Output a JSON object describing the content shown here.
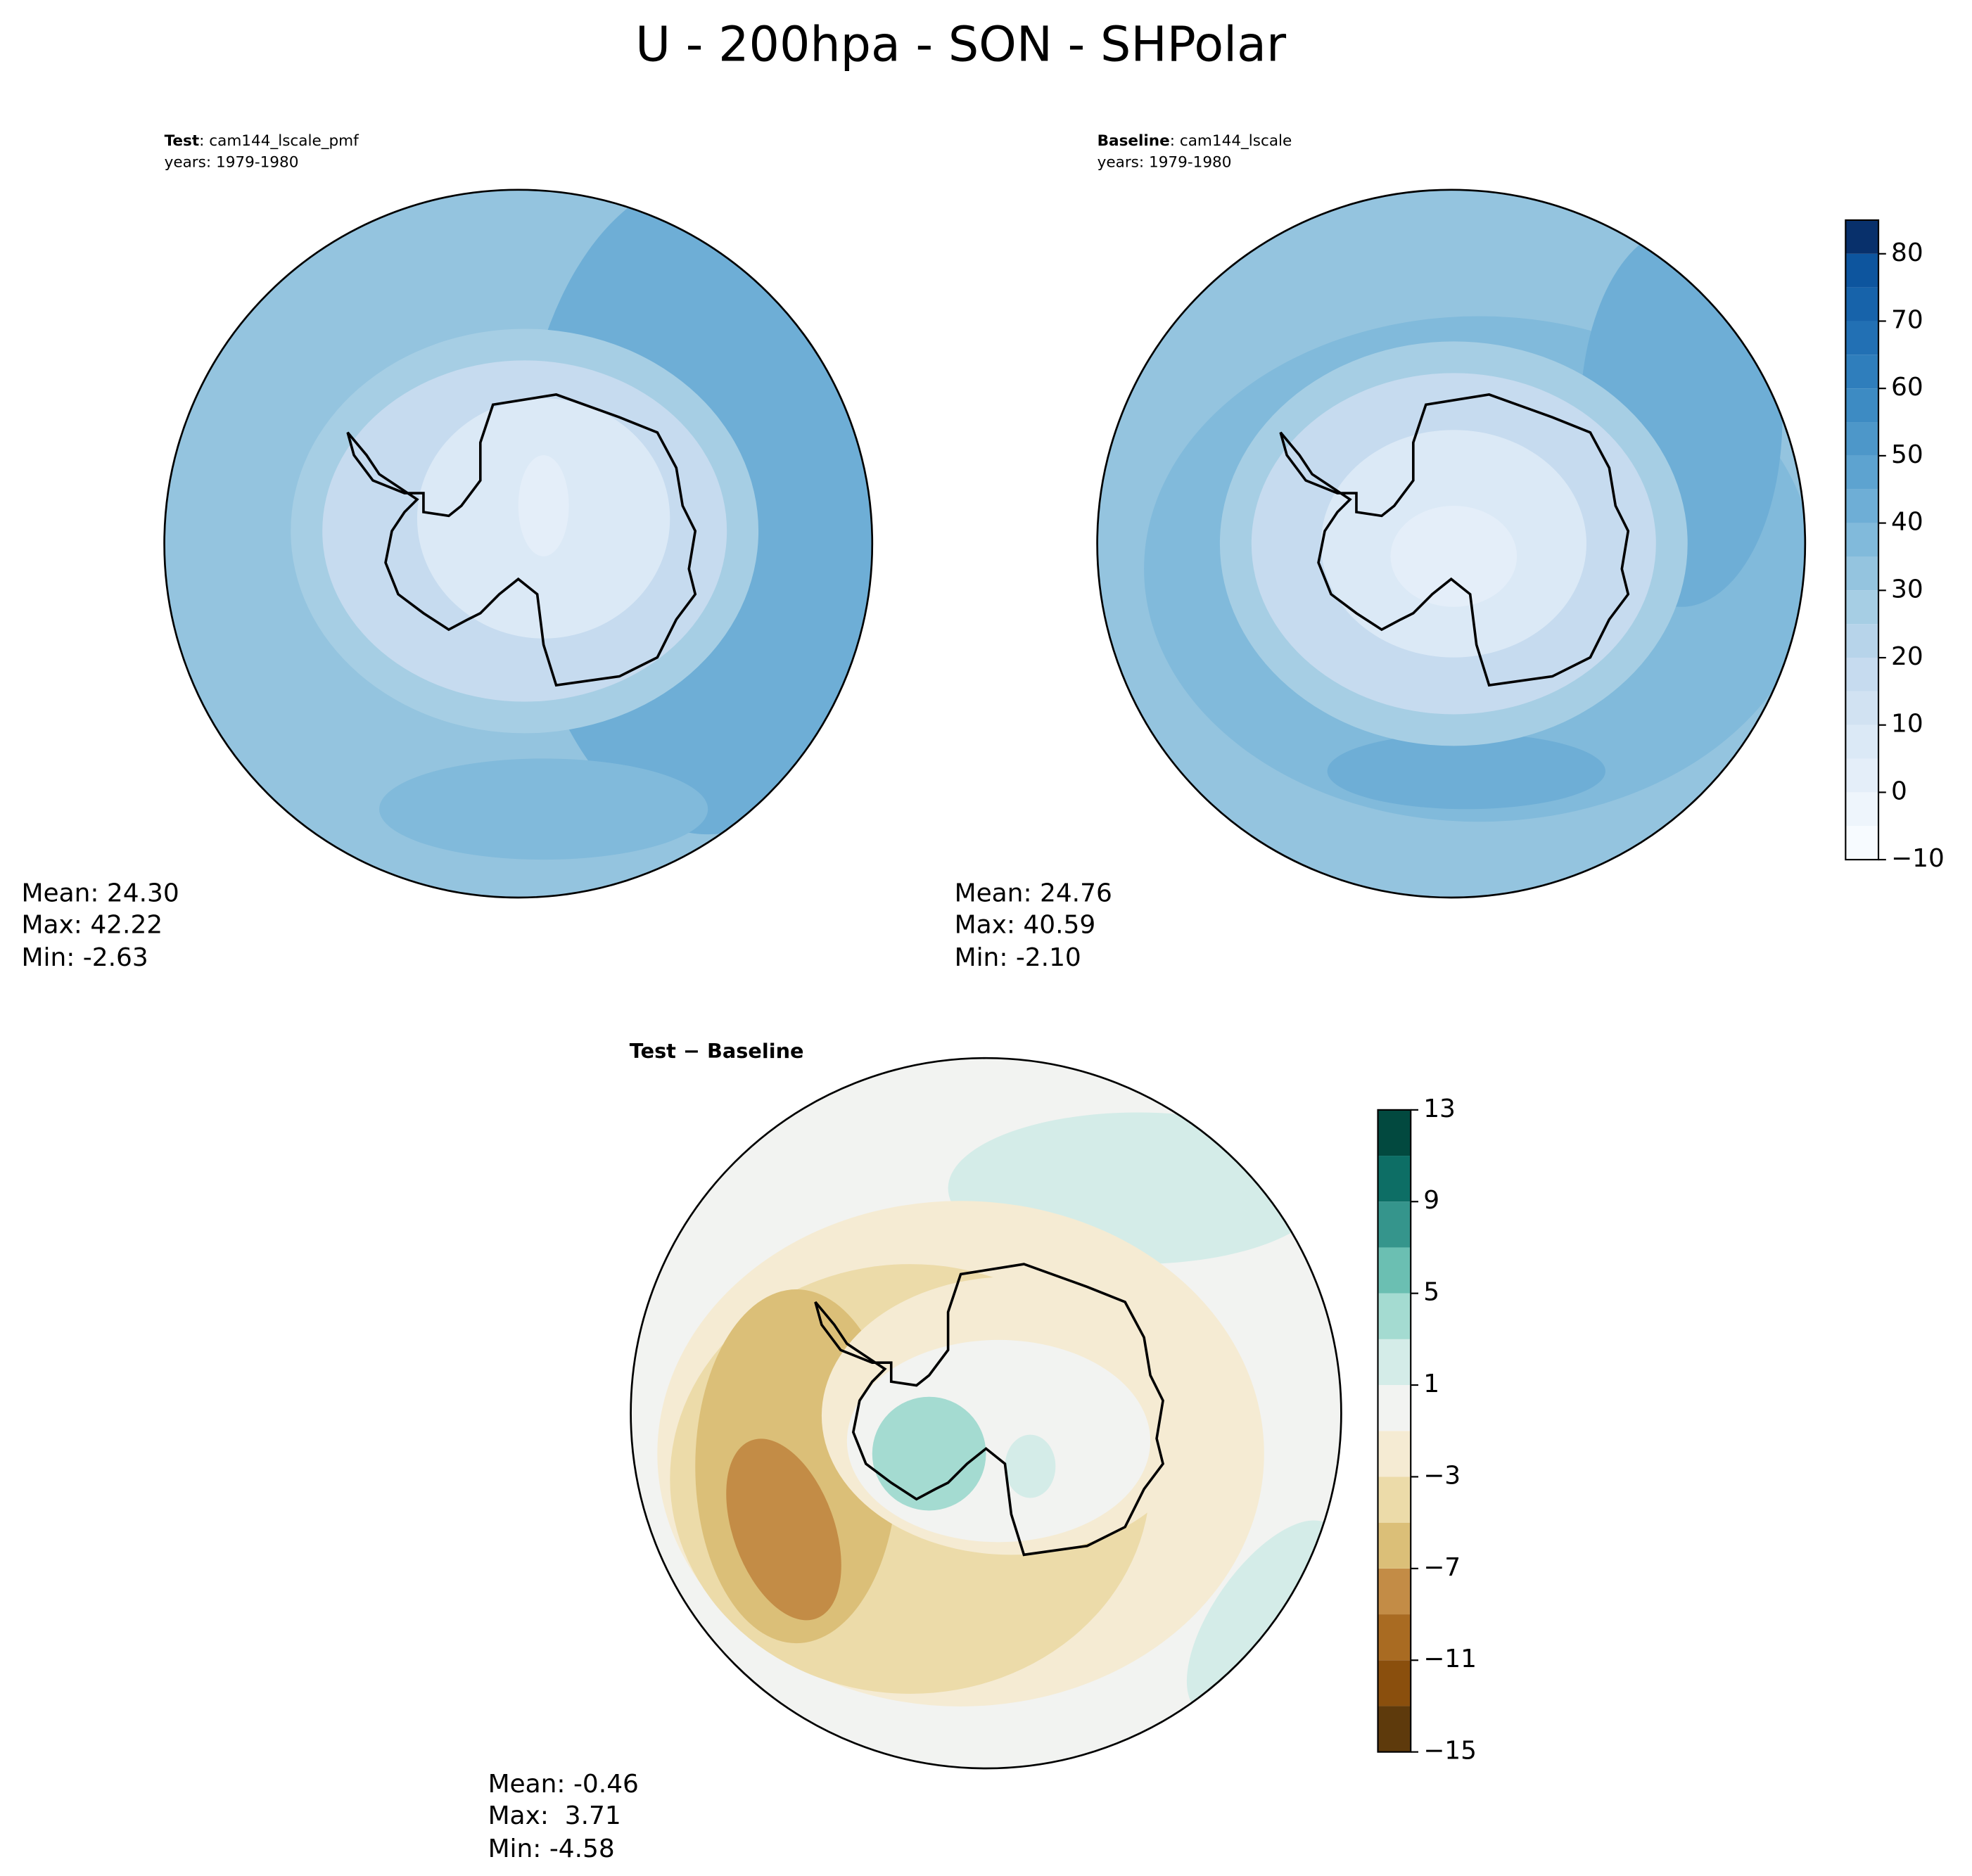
{
  "title": "U - 200hpa - SON - SHPolar",
  "panels": [
    {
      "name_bold": "Test",
      "name_text": ": cam144_lscale_pmf",
      "years": "years: 1979-1980",
      "stats": [
        "Mean: 24.30",
        "Max: 42.22",
        "Min: -2.63"
      ]
    },
    {
      "name_bold": "Baseline",
      "name_text": ": cam144_lscale",
      "years": "years: 1979-1980",
      "stats": [
        "Mean: 24.76",
        "Max: 40.59",
        "Min: -2.10"
      ]
    },
    {
      "name_bold": "Test − Baseline",
      "stats": [
        "Mean: -0.46",
        "Max:  3.71",
        "Min: -4.58"
      ]
    }
  ],
  "colorbars": [
    {
      "levels": [
        -10,
        -5,
        0,
        5,
        10,
        15,
        20,
        25,
        30,
        35,
        40,
        45,
        50,
        55,
        60,
        65,
        70,
        75,
        80,
        85
      ],
      "colors": [
        "#f7fbff",
        "#eef5fc",
        "#e4eef9",
        "#dbe9f6",
        "#d1e2f2",
        "#c6dbef",
        "#b7d4ea",
        "#a6cee4",
        "#94c4df",
        "#81badb",
        "#6eaed6",
        "#5da3d0",
        "#4d97c9",
        "#3d8bc3",
        "#2f7ebc",
        "#2270b4",
        "#1763aa",
        "#0d559e",
        "#08306b"
      ],
      "ticks": [
        {
          "value": -10,
          "label": "−10"
        },
        0,
        10,
        20,
        30,
        40,
        50,
        60,
        70,
        80
      ]
    },
    {
      "levels": [
        -15,
        -13,
        -11,
        -9,
        -7,
        -5,
        -3,
        -1,
        1,
        3,
        5,
        7,
        9,
        11,
        13
      ],
      "colors": [
        "#5e3a0c",
        "#8a4f0d",
        "#a96b22",
        "#c38c46",
        "#dbbf78",
        "#ecdba9",
        "#f5ebd3",
        "#f2f3f1",
        "#d4ece8",
        "#a4dbd1",
        "#6bbfb2",
        "#35958c",
        "#0d6e65",
        "#02493f"
      ],
      "ticks": [
        {
          "value": -15,
          "label": "−15"
        },
        {
          "value": -11,
          "label": "−11"
        },
        {
          "value": -7,
          "label": "−7"
        },
        {
          "value": -3,
          "label": "−3"
        },
        1,
        5,
        9,
        13
      ]
    }
  ]
}
